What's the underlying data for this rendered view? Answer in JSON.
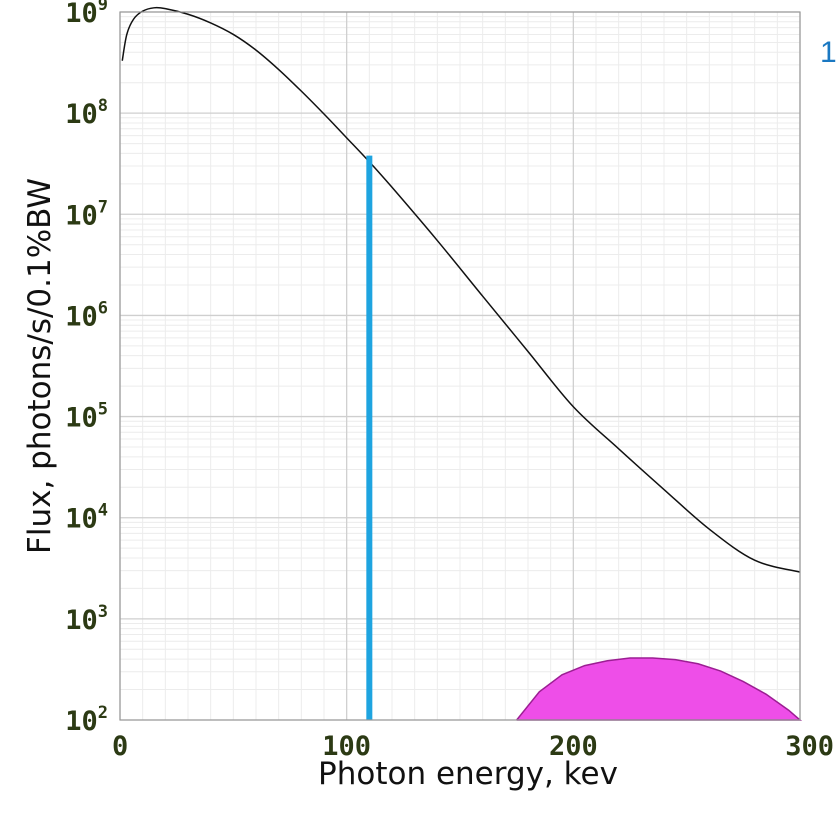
{
  "chart_data": {
    "type": "line",
    "title": "",
    "xlabel": "Photon energy, kev",
    "ylabel": "Flux, photons/s/0.1%BW",
    "xlim": [
      0,
      300
    ],
    "ylim": [
      100,
      1000000000
    ],
    "y_scale": "log",
    "grid": true,
    "x_ticks": [
      {
        "value": 0,
        "label": "0"
      },
      {
        "value": 100,
        "label": "100"
      },
      {
        "value": 200,
        "label": "200"
      },
      {
        "value": 300,
        "label": "300"
      }
    ],
    "y_ticks": [
      {
        "value": 100,
        "base": "10",
        "exp": "2"
      },
      {
        "value": 1000,
        "base": "10",
        "exp": "3"
      },
      {
        "value": 10000,
        "base": "10",
        "exp": "4"
      },
      {
        "value": 100000,
        "base": "10",
        "exp": "5"
      },
      {
        "value": 1000000,
        "base": "10",
        "exp": "6"
      },
      {
        "value": 10000000,
        "base": "10",
        "exp": "7"
      },
      {
        "value": 100000000,
        "base": "10",
        "exp": "8"
      },
      {
        "value": 1000000000,
        "base": "10",
        "exp": "9"
      }
    ],
    "series": [
      {
        "style": "line",
        "color": "#111111",
        "x": [
          1,
          3,
          6,
          10,
          15,
          20,
          30,
          40,
          50,
          60,
          70,
          80,
          90,
          100,
          110,
          120,
          140,
          160,
          180,
          200,
          220,
          240,
          260,
          280,
          300
        ],
        "y": [
          330000000,
          600000000,
          850000000,
          1020000000,
          1100000000,
          1080000000,
          950000000,
          780000000,
          600000000,
          420000000,
          270000000,
          165000000,
          98000000,
          57000000,
          33000000,
          18500000,
          5500000,
          1550000,
          440000,
          125000,
          48000,
          19000,
          7700,
          3800,
          2900
        ]
      },
      {
        "style": "vline",
        "color": "#1ea4e0",
        "x": [
          110,
          110
        ],
        "y": [
          100,
          38000000
        ]
      },
      {
        "style": "area",
        "color": "#ee4ee8",
        "x": [
          175,
          185,
          195,
          205,
          215,
          225,
          235,
          245,
          255,
          265,
          275,
          285,
          295,
          300
        ],
        "y": [
          100,
          190,
          280,
          345,
          385,
          410,
          410,
          395,
          360,
          305,
          240,
          180,
          125,
          100
        ]
      }
    ],
    "annotation": {
      "text": "1",
      "color": "#1a78c2"
    }
  }
}
